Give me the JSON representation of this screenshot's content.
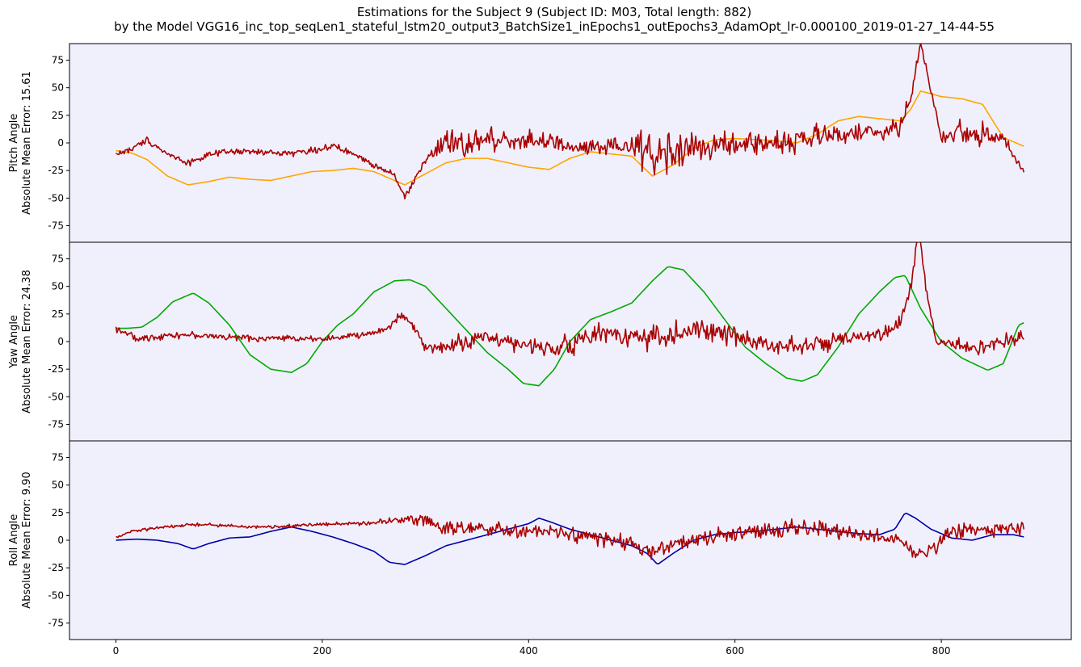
{
  "figure": {
    "title_line1": "Estimations for the Subject 9 (Subject ID: M03, Total length: 882)",
    "title_line2": "by the Model VGG16_inc_top_seqLen1_stateful_lstm20_output3_BatchSize1_inEpochs1_outEpochs3_AdamOpt_lr-0.000100_2019-01-27_14-44-55",
    "background_color": "#f0f0fc"
  },
  "chart_data": [
    {
      "type": "line",
      "ylabel_line1": "Pitch Angle",
      "ylabel_line2": "Absolute Mean Error: 15.61",
      "xlim": [
        -45,
        926
      ],
      "ylim": [
        -90,
        90
      ],
      "yticks": [
        -75,
        -50,
        -25,
        0,
        25,
        50,
        75
      ],
      "series": [
        {
          "role": "ground_truth",
          "color": "#ffa500",
          "x": [
            0,
            15,
            30,
            50,
            70,
            90,
            110,
            130,
            150,
            170,
            190,
            210,
            230,
            250,
            270,
            280,
            300,
            320,
            340,
            360,
            380,
            400,
            420,
            440,
            460,
            480,
            500,
            520,
            540,
            560,
            580,
            600,
            620,
            640,
            660,
            680,
            700,
            720,
            740,
            760,
            770,
            780,
            800,
            820,
            840,
            860,
            880
          ],
          "y": [
            -7,
            -9,
            -15,
            -30,
            -38,
            -35,
            -31,
            -33,
            -34,
            -30,
            -26,
            -25,
            -23,
            -26,
            -34,
            -38,
            -28,
            -18,
            -14,
            -14,
            -18,
            -22,
            -24,
            -14,
            -8,
            -10,
            -12,
            -30,
            -20,
            -5,
            3,
            4,
            3,
            2,
            0,
            8,
            20,
            24,
            22,
            20,
            30,
            47,
            42,
            40,
            35,
            5,
            -3
          ]
        },
        {
          "role": "estimation",
          "color": "#a90000",
          "noise": [
            2,
            2,
            2,
            2,
            2,
            2,
            2,
            2,
            2,
            2,
            2,
            2,
            2,
            2,
            2,
            2,
            3,
            8,
            8,
            9,
            9,
            8,
            7,
            5,
            6,
            7,
            9,
            14,
            12,
            9,
            8,
            7,
            7,
            7,
            8,
            8,
            6,
            6,
            6,
            6,
            4,
            2,
            6,
            7,
            8,
            5,
            2
          ],
          "x": [
            0,
            15,
            30,
            50,
            70,
            90,
            110,
            130,
            150,
            170,
            190,
            210,
            230,
            250,
            270,
            280,
            300,
            320,
            340,
            360,
            380,
            400,
            420,
            440,
            460,
            480,
            500,
            520,
            540,
            560,
            580,
            600,
            620,
            640,
            660,
            680,
            700,
            720,
            740,
            760,
            770,
            780,
            800,
            820,
            840,
            860,
            880
          ],
          "y": [
            -10,
            -6,
            3,
            -10,
            -18,
            -11,
            -8,
            -8,
            -9,
            -9,
            -7,
            -3,
            -10,
            -20,
            -28,
            -50,
            -15,
            0,
            -2,
            3,
            3,
            3,
            1,
            -5,
            -5,
            -5,
            -3,
            -10,
            -8,
            -5,
            -3,
            -2,
            0,
            0,
            3,
            5,
            8,
            10,
            8,
            15,
            40,
            90,
            5,
            10,
            8,
            5,
            -28
          ]
        }
      ]
    },
    {
      "type": "line",
      "ylabel_line1": "Yaw Angle",
      "ylabel_line2": "Absolute Mean Error: 24.38",
      "xlim": [
        -45,
        926
      ],
      "ylim": [
        -90,
        90
      ],
      "yticks": [
        -75,
        -50,
        -25,
        0,
        25,
        50,
        75
      ],
      "series": [
        {
          "role": "ground_truth",
          "color": "#00aa00",
          "x": [
            0,
            10,
            25,
            40,
            55,
            75,
            90,
            110,
            130,
            150,
            170,
            185,
            200,
            215,
            230,
            250,
            270,
            285,
            300,
            320,
            340,
            360,
            380,
            395,
            410,
            425,
            440,
            460,
            480,
            500,
            520,
            535,
            550,
            570,
            590,
            610,
            630,
            650,
            665,
            680,
            700,
            720,
            740,
            755,
            765,
            780,
            800,
            820,
            845,
            860,
            875,
            880
          ],
          "y": [
            12,
            12,
            13,
            22,
            36,
            44,
            35,
            15,
            -12,
            -25,
            -28,
            -20,
            0,
            15,
            25,
            45,
            55,
            56,
            50,
            30,
            10,
            -10,
            -25,
            -38,
            -40,
            -25,
            0,
            20,
            27,
            35,
            55,
            68,
            65,
            45,
            20,
            -5,
            -20,
            -33,
            -36,
            -30,
            -5,
            25,
            45,
            58,
            60,
            30,
            0,
            -15,
            -26,
            -20,
            15,
            17
          ]
        },
        {
          "role": "estimation",
          "color": "#a90000",
          "noise": [
            2,
            2,
            2,
            2,
            2,
            2,
            2,
            2,
            2,
            2,
            2,
            2,
            2,
            2,
            2,
            2,
            2,
            3,
            4,
            5,
            5,
            5,
            5,
            5,
            5,
            6,
            7,
            7,
            7,
            8,
            8,
            8,
            8,
            6,
            5,
            5,
            5,
            5,
            5,
            5,
            6,
            6,
            6,
            4,
            3,
            2,
            4,
            5,
            5,
            5,
            5
          ],
          "x": [
            0,
            10,
            20,
            30,
            50,
            70,
            90,
            110,
            130,
            150,
            170,
            190,
            210,
            230,
            250,
            265,
            275,
            285,
            300,
            320,
            340,
            360,
            380,
            400,
            420,
            440,
            460,
            480,
            500,
            520,
            540,
            560,
            580,
            600,
            620,
            640,
            660,
            680,
            700,
            720,
            740,
            760,
            770,
            778,
            785,
            795,
            810,
            830,
            850,
            870,
            880
          ],
          "y": [
            12,
            8,
            2,
            3,
            6,
            6,
            5,
            4,
            3,
            3,
            3,
            3,
            3,
            5,
            8,
            12,
            25,
            18,
            -5,
            -5,
            0,
            5,
            0,
            -5,
            -5,
            -3,
            5,
            8,
            5,
            5,
            5,
            10,
            8,
            5,
            0,
            -3,
            -3,
            -3,
            0,
            3,
            5,
            15,
            50,
            100,
            50,
            0,
            -3,
            -5,
            -3,
            0,
            5
          ]
        }
      ]
    },
    {
      "type": "line",
      "ylabel_line1": "Roll Angle",
      "ylabel_line2": "Absolute Mean Error: 9.90",
      "xlim": [
        -45,
        926
      ],
      "ylim": [
        -90,
        90
      ],
      "yticks": [
        -75,
        -50,
        -25,
        0,
        25,
        50,
        75
      ],
      "series": [
        {
          "role": "ground_truth",
          "color": "#0000aa",
          "x": [
            0,
            20,
            40,
            60,
            75,
            90,
            110,
            130,
            150,
            170,
            190,
            210,
            230,
            250,
            265,
            280,
            300,
            320,
            340,
            360,
            380,
            400,
            410,
            420,
            440,
            460,
            480,
            500,
            515,
            525,
            540,
            560,
            580,
            600,
            620,
            640,
            660,
            680,
            700,
            720,
            740,
            755,
            765,
            775,
            790,
            810,
            830,
            850,
            870,
            880
          ],
          "y": [
            0,
            1,
            0,
            -3,
            -8,
            -3,
            2,
            3,
            8,
            12,
            8,
            3,
            -3,
            -10,
            -20,
            -22,
            -14,
            -5,
            0,
            5,
            10,
            15,
            20,
            17,
            10,
            5,
            0,
            -5,
            -12,
            -22,
            -12,
            0,
            5,
            7,
            8,
            10,
            12,
            10,
            8,
            6,
            5,
            10,
            25,
            20,
            10,
            2,
            0,
            5,
            5,
            3
          ]
        },
        {
          "role": "estimation",
          "color": "#a90000",
          "noise": [
            1,
            1,
            1,
            1,
            1,
            1,
            1,
            1,
            1,
            1,
            1,
            1,
            1,
            2,
            2,
            3,
            4,
            5,
            5,
            5,
            5,
            4,
            4,
            4,
            4,
            5,
            6,
            6,
            5,
            5,
            5,
            5,
            6,
            6,
            6,
            5,
            5,
            4,
            4,
            4,
            4,
            5,
            5,
            5,
            4
          ],
          "x": [
            0,
            15,
            30,
            50,
            70,
            90,
            110,
            130,
            150,
            170,
            190,
            210,
            230,
            250,
            270,
            285,
            300,
            320,
            340,
            360,
            380,
            400,
            420,
            440,
            460,
            480,
            500,
            520,
            540,
            560,
            580,
            600,
            620,
            640,
            660,
            680,
            700,
            720,
            740,
            760,
            775,
            790,
            810,
            840,
            880
          ],
          "y": [
            2,
            8,
            10,
            12,
            14,
            14,
            13,
            12,
            12,
            13,
            14,
            15,
            15,
            16,
            18,
            20,
            18,
            12,
            10,
            10,
            8,
            8,
            8,
            5,
            3,
            0,
            -5,
            -10,
            -5,
            0,
            3,
            5,
            8,
            10,
            12,
            10,
            8,
            5,
            3,
            0,
            -15,
            -8,
            8,
            10,
            12
          ]
        }
      ]
    }
  ],
  "xaxis": {
    "ticks": [
      0,
      200,
      400,
      600,
      800
    ]
  }
}
